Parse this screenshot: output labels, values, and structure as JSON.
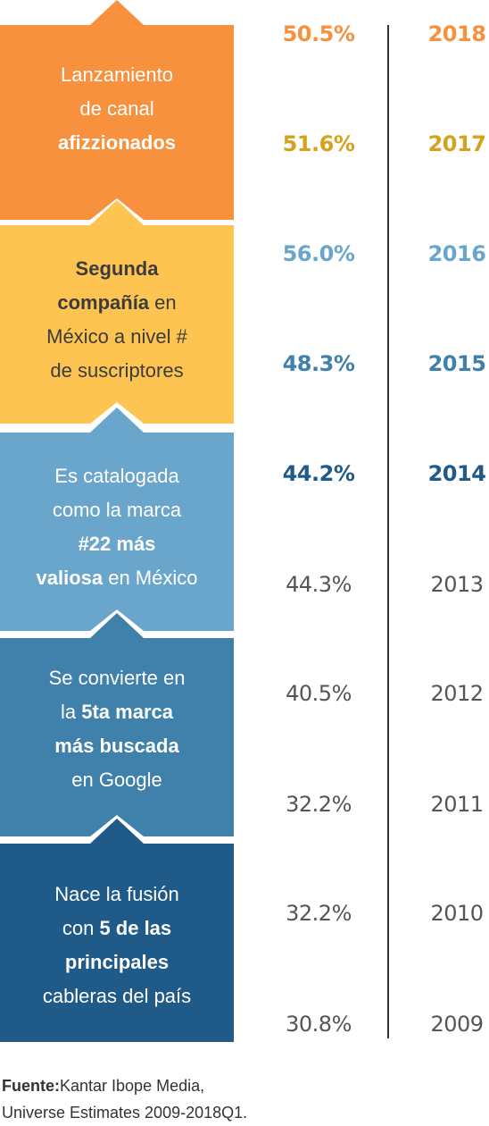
{
  "chart_data": {
    "type": "table",
    "rows": [
      {
        "year": "2018",
        "value": "50.5%",
        "color": "#f7913d",
        "bold": true
      },
      {
        "year": "2017",
        "value": "51.6%",
        "color": "#d4a21d",
        "bold": true
      },
      {
        "year": "2016",
        "value": "56.0%",
        "color": "#6aa6cc",
        "bold": true
      },
      {
        "year": "2015",
        "value": "48.3%",
        "color": "#3f81ab",
        "bold": true
      },
      {
        "year": "2014",
        "value": "44.2%",
        "color": "#1f5a88",
        "bold": true
      },
      {
        "year": "2013",
        "value": "44.3%",
        "color": "#555555",
        "bold": false
      },
      {
        "year": "2012",
        "value": "40.5%",
        "color": "#555555",
        "bold": false
      },
      {
        "year": "2011",
        "value": "32.2%",
        "color": "#555555",
        "bold": false
      },
      {
        "year": "2010",
        "value": "32.2%",
        "color": "#555555",
        "bold": false
      },
      {
        "year": "2009",
        "value": "30.8%",
        "color": "#555555",
        "bold": false
      }
    ]
  },
  "milestones": [
    {
      "color": "#f7913d",
      "text_color": "#ffffff",
      "lines": [
        [
          {
            "t": "Lanzamiento",
            "b": false
          }
        ],
        [
          {
            "t": "de canal",
            "b": false
          }
        ],
        [
          {
            "t": "afizzionados",
            "b": true
          }
        ]
      ]
    },
    {
      "color": "#fec451",
      "text_color": "#3c3c3c",
      "lines": [
        [
          {
            "t": "Segunda",
            "b": true
          }
        ],
        [
          {
            "t": "compañía",
            "b": true
          },
          {
            "t": " en",
            "b": false
          }
        ],
        [
          {
            "t": "México a nivel #",
            "b": false
          }
        ],
        [
          {
            "t": "de suscriptores",
            "b": false
          }
        ]
      ]
    },
    {
      "color": "#6aa6cc",
      "text_color": "#ffffff",
      "lines": [
        [
          {
            "t": "Es catalogada",
            "b": false
          }
        ],
        [
          {
            "t": "como la marca",
            "b": false
          }
        ],
        [
          {
            "t": "#22 más",
            "b": true
          }
        ],
        [
          {
            "t": "valiosa",
            "b": true
          },
          {
            "t": " en México",
            "b": false
          }
        ]
      ]
    },
    {
      "color": "#3f81ab",
      "text_color": "#ffffff",
      "lines": [
        [
          {
            "t": "Se convierte en",
            "b": false
          }
        ],
        [
          {
            "t": "la ",
            "b": false
          },
          {
            "t": "5ta marca",
            "b": true
          }
        ],
        [
          {
            "t": "más buscada",
            "b": true
          }
        ],
        [
          {
            "t": "en Google",
            "b": false
          }
        ]
      ]
    },
    {
      "color": "#1f5a88",
      "text_color": "#ffffff",
      "lines": [
        [
          {
            "t": "Nace la fusión",
            "b": false
          }
        ],
        [
          {
            "t": "con ",
            "b": false
          },
          {
            "t": "5 de las",
            "b": true
          }
        ],
        [
          {
            "t": "principales",
            "b": true
          }
        ],
        [
          {
            "t": "cableras del país",
            "b": false
          }
        ]
      ]
    }
  ],
  "source": {
    "label": "Fuente:",
    "line1": "Kantar Ibope Media,",
    "line2": "Universe Estimates 2009-2018Q1."
  }
}
